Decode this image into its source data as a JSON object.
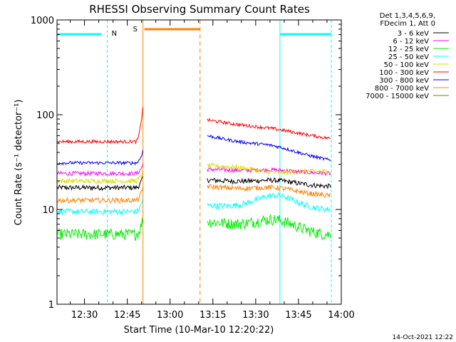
{
  "chart_data": {
    "type": "line",
    "title": "RHESSI Observing Summary Count Rates",
    "xlabel": "Start Time (10-Mar-10 12:20:22)",
    "ylabel": "Count Rate (s⁻¹ detector⁻¹)",
    "yscale": "log",
    "ylim": [
      1,
      1000
    ],
    "xlim": [
      "12:20:22",
      "14:00:00"
    ],
    "x_ticks": [
      "12:30",
      "12:45",
      "13:00",
      "13:15",
      "13:30",
      "13:45",
      "14:00"
    ],
    "y_ticks": [
      "1",
      "10",
      "100",
      "1000"
    ],
    "legend_placement": "outside-right",
    "legend_header": [
      "Det 1,3,4,5,6,9,",
      "FDecim 1, Att 0"
    ],
    "series": [
      {
        "name": "3 - 6 keV",
        "color": "#000000",
        "before": 17,
        "flare_peak": 22,
        "after": 20.5,
        "hump": 1.08,
        "end": 17.5,
        "noise": 0.06
      },
      {
        "name": "6 - 12 keV",
        "color": "#ff00ff",
        "before": 24,
        "flare_peak": 30,
        "after": 26.5,
        "hump": 1.04,
        "end": 24,
        "noise": 0.05
      },
      {
        "name": "12 - 25 keV",
        "color": "#00ee00",
        "before": 5.5,
        "flare_peak": 8,
        "after": 7.5,
        "hump": 1.25,
        "end": 5.4,
        "noise": 0.14
      },
      {
        "name": "25 - 50 keV",
        "color": "#00ffff",
        "before": 9.5,
        "flare_peak": 13,
        "after": 11,
        "hump": 1.35,
        "end": 10,
        "noise": 0.07
      },
      {
        "name": "50 - 100 keV",
        "color": "#dddd00",
        "before": 20,
        "flare_peak": 26,
        "after": 29,
        "hump": 0.92,
        "end": 25,
        "noise": 0.06
      },
      {
        "name": "100 - 300 keV",
        "color": "#ff0000",
        "before": 52,
        "flare_peak": 125,
        "after": 88,
        "hump": 1.03,
        "end": 56,
        "noise": 0.04
      },
      {
        "name": "300 - 800 keV",
        "color": "#0000ff",
        "before": 31,
        "flare_peak": 42,
        "after": 60,
        "hump": 1.08,
        "end": 33,
        "noise": 0.04
      },
      {
        "name": "800 - 7000 keV",
        "color": "#ff8000",
        "before": 12.5,
        "flare_peak": 17,
        "after": 17.5,
        "hump": 1.1,
        "end": 14,
        "noise": 0.06
      },
      {
        "name": "7000 - 15000 keV",
        "color": "#808000",
        "before": 0,
        "flare_peak": 0,
        "after": 0,
        "hump": 1,
        "end": 0,
        "noise": 0
      }
    ],
    "annotations": {
      "night_label": "N",
      "saa_label": "S",
      "night_intervals": [
        [
          "12:20:22",
          "12:38:00"
        ],
        [
          "13:38:30",
          "13:56:30"
        ]
      ],
      "saa_interval": [
        "12:50:30",
        "13:10:30"
      ],
      "data_gap": [
        "12:50:30",
        "13:13:00"
      ]
    }
  },
  "footer": {
    "date_stamp": "14-Oct-2021 12:22"
  },
  "colors": {
    "background": "#ffffff",
    "axes": "#000000",
    "night": "#00ffff",
    "saa": "#ff8000"
  }
}
